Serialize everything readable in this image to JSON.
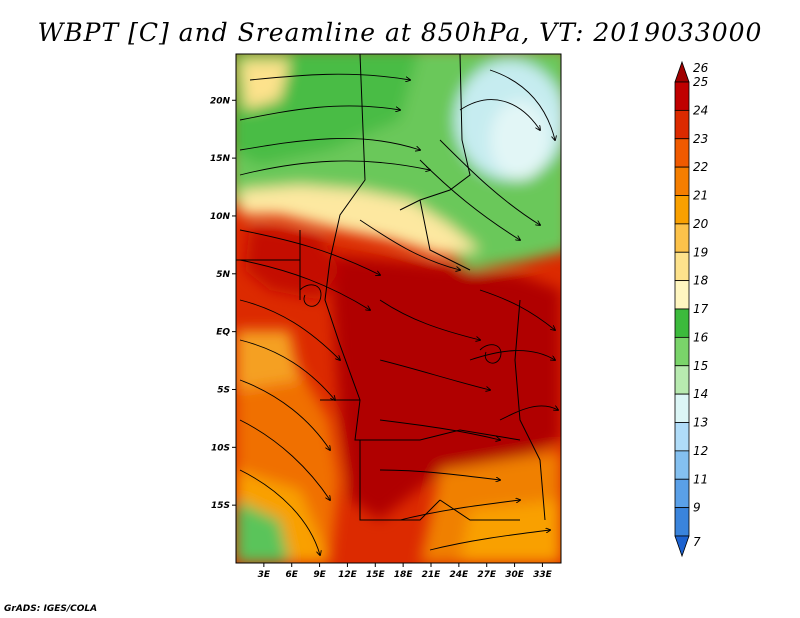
{
  "title": "WBPT [C] and Sreamline at 850hPa, VT: 2019033000",
  "credit": "GrADS: IGES/COLA",
  "map": {
    "lat_range": [
      -20,
      24
    ],
    "lon_range": [
      0,
      35
    ],
    "lat_ticks": [
      {
        "label": "20N",
        "value": 20
      },
      {
        "label": "15N",
        "value": 15
      },
      {
        "label": "10N",
        "value": 10
      },
      {
        "label": "5N",
        "value": 5
      },
      {
        "label": "EQ",
        "value": 0
      },
      {
        "label": "5S",
        "value": -5
      },
      {
        "label": "10S",
        "value": -10
      },
      {
        "label": "15S",
        "value": -15
      }
    ],
    "lon_ticks": [
      {
        "label": "3E",
        "value": 3
      },
      {
        "label": "6E",
        "value": 6
      },
      {
        "label": "9E",
        "value": 9
      },
      {
        "label": "12E",
        "value": 12
      },
      {
        "label": "15E",
        "value": 15
      },
      {
        "label": "18E",
        "value": 18
      },
      {
        "label": "21E",
        "value": 21
      },
      {
        "label": "24E",
        "value": 24
      },
      {
        "label": "27E",
        "value": 27
      },
      {
        "label": "30E",
        "value": 30
      },
      {
        "label": "33E",
        "value": 33
      }
    ]
  },
  "colorbar": {
    "levels": [
      {
        "label": "26",
        "color": "#a00000"
      },
      {
        "label": "25",
        "color": "#c00000"
      },
      {
        "label": "24",
        "color": "#dc2a00"
      },
      {
        "label": "23",
        "color": "#f05a00"
      },
      {
        "label": "22",
        "color": "#f57e00"
      },
      {
        "label": "21",
        "color": "#f9a000"
      },
      {
        "label": "20",
        "color": "#fcc24a"
      },
      {
        "label": "19",
        "color": "#fde28c"
      },
      {
        "label": "18",
        "color": "#fff6c0"
      },
      {
        "label": "17",
        "color": "#3cba3c"
      },
      {
        "label": "16",
        "color": "#7ad46a"
      },
      {
        "label": "15",
        "color": "#b8eab0"
      },
      {
        "label": "14",
        "color": "#dcf6f6"
      },
      {
        "label": "13",
        "color": "#b0dcf8"
      },
      {
        "label": "12",
        "color": "#84c0f0"
      },
      {
        "label": "11",
        "color": "#5aa0e8"
      },
      {
        "label": "9",
        "color": "#3a84dc"
      },
      {
        "label": "7",
        "color": "#1c62d0"
      }
    ]
  }
}
